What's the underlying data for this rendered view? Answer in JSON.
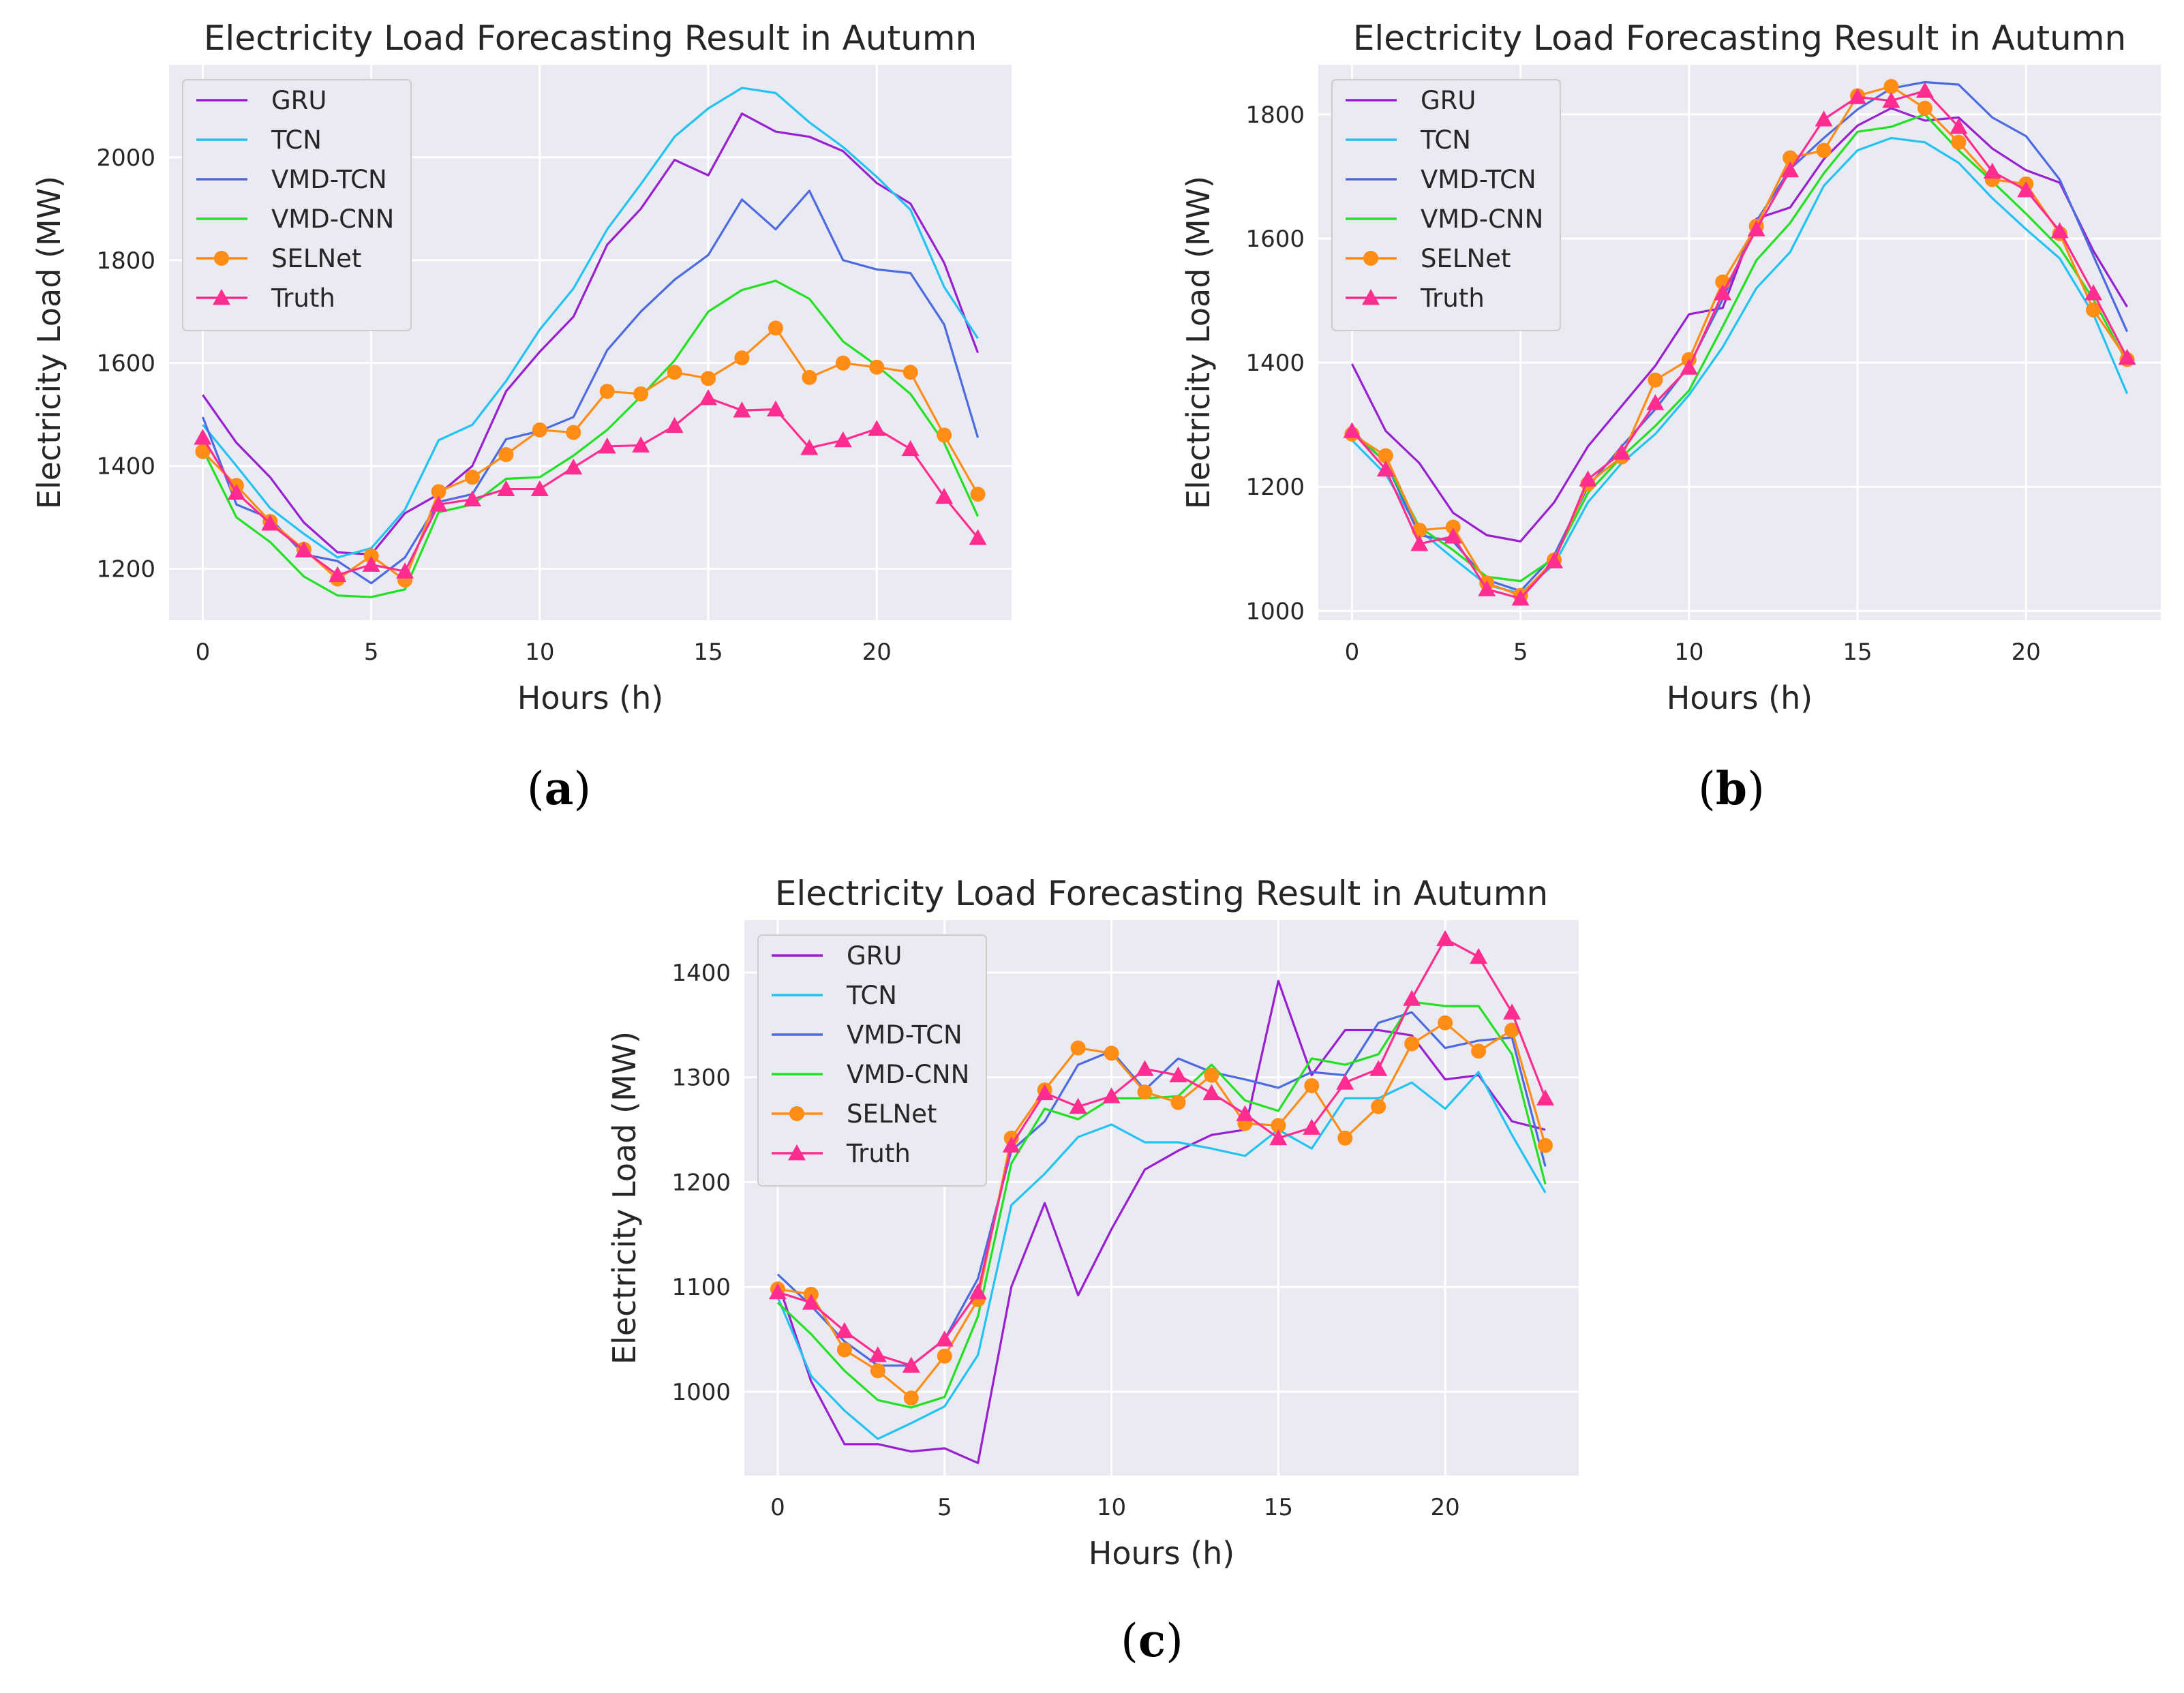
{
  "colors": {
    "plot_bg": "#eaeaf2",
    "grid": "#ffffff",
    "legend_bg": "#eaeaf2",
    "legend_border": "#cccccc",
    "GRU": "#9a1fd0",
    "TCN": "#22c3f2",
    "VMD-TCN": "#4d6ae0",
    "VMD-CNN": "#22e022",
    "SELNet": "#ff8c14",
    "Truth": "#ff2d8f"
  },
  "chart_data": [
    {
      "type": "line",
      "panel_label": "a",
      "title": "Electricity Load Forecasting Result in Autumn",
      "xlabel": "Hours (h)",
      "ylabel": "Electricity Load (MW)",
      "xlim": [
        -1,
        24
      ],
      "ylim": [
        1100,
        2180
      ],
      "xticks": [
        0,
        5,
        10,
        15,
        20
      ],
      "yticks": [
        1200,
        1400,
        1600,
        1800,
        2000
      ],
      "legend": "top-left",
      "grid": true,
      "x": [
        0,
        1,
        2,
        3,
        4,
        5,
        6,
        7,
        8,
        9,
        10,
        11,
        12,
        13,
        14,
        15,
        16,
        17,
        18,
        19,
        20,
        21,
        22,
        23
      ],
      "series": [
        {
          "name": "GRU",
          "marker": "none",
          "values": [
            1538,
            1445,
            1378,
            1290,
            1232,
            1228,
            1308,
            1345,
            1400,
            1545,
            1622,
            1690,
            1830,
            1900,
            1995,
            1965,
            2085,
            2050,
            2040,
            2012,
            1950,
            1910,
            1795,
            1620
          ]
        },
        {
          "name": "TCN",
          "marker": "none",
          "values": [
            1480,
            1400,
            1318,
            1268,
            1222,
            1240,
            1315,
            1450,
            1480,
            1565,
            1665,
            1745,
            1860,
            1948,
            2040,
            2095,
            2135,
            2125,
            2068,
            2020,
            1962,
            1898,
            1748,
            1648
          ]
        },
        {
          "name": "VMD-TCN",
          "marker": "none",
          "values": [
            1495,
            1325,
            1298,
            1228,
            1215,
            1172,
            1222,
            1330,
            1345,
            1452,
            1468,
            1495,
            1625,
            1700,
            1762,
            1810,
            1918,
            1860,
            1935,
            1800,
            1782,
            1775,
            1675,
            1455
          ]
        },
        {
          "name": "VMD-CNN",
          "marker": "none",
          "values": [
            1432,
            1300,
            1252,
            1185,
            1148,
            1145,
            1160,
            1310,
            1325,
            1375,
            1378,
            1420,
            1470,
            1535,
            1605,
            1700,
            1742,
            1760,
            1725,
            1642,
            1595,
            1540,
            1445,
            1302
          ]
        },
        {
          "name": "SELNet",
          "marker": "circle",
          "values": [
            1428,
            1362,
            1292,
            1238,
            1180,
            1225,
            1178,
            1350,
            1378,
            1422,
            1470,
            1465,
            1545,
            1540,
            1582,
            1570,
            1610,
            1668,
            1572,
            1600,
            1592,
            1582,
            1460,
            1345
          ]
        },
        {
          "name": "Truth",
          "marker": "triangle",
          "values": [
            1455,
            1348,
            1288,
            1236,
            1188,
            1208,
            1195,
            1325,
            1335,
            1355,
            1355,
            1397,
            1438,
            1440,
            1478,
            1532,
            1508,
            1510,
            1435,
            1450,
            1472,
            1433,
            1340,
            1260
          ]
        }
      ]
    },
    {
      "type": "line",
      "panel_label": "b",
      "title": "Electricity Load Forecasting Result in Autumn",
      "xlabel": "Hours (h)",
      "ylabel": "Electricity Load (MW)",
      "xlim": [
        -1,
        24
      ],
      "ylim": [
        985,
        1880
      ],
      "xticks": [
        0,
        5,
        10,
        15,
        20
      ],
      "yticks": [
        1000,
        1200,
        1400,
        1600,
        1800
      ],
      "legend": "top-left",
      "grid": true,
      "x": [
        0,
        1,
        2,
        3,
        4,
        5,
        6,
        7,
        8,
        9,
        10,
        11,
        12,
        13,
        14,
        15,
        16,
        17,
        18,
        19,
        20,
        21,
        22,
        23
      ],
      "series": [
        {
          "name": "GRU",
          "marker": "none",
          "values": [
            1398,
            1290,
            1238,
            1158,
            1122,
            1112,
            1175,
            1265,
            1330,
            1395,
            1478,
            1488,
            1632,
            1650,
            1728,
            1782,
            1810,
            1790,
            1795,
            1745,
            1710,
            1690,
            1580,
            1490
          ]
        },
        {
          "name": "TCN",
          "marker": "none",
          "values": [
            1275,
            1220,
            1130,
            1085,
            1042,
            1028,
            1075,
            1175,
            1238,
            1285,
            1348,
            1425,
            1520,
            1578,
            1685,
            1742,
            1762,
            1755,
            1722,
            1665,
            1615,
            1568,
            1478,
            1350
          ]
        },
        {
          "name": "VMD-TCN",
          "marker": "none",
          "values": [
            1288,
            1240,
            1122,
            1112,
            1050,
            1032,
            1090,
            1200,
            1265,
            1325,
            1395,
            1502,
            1628,
            1712,
            1762,
            1808,
            1842,
            1852,
            1848,
            1795,
            1765,
            1695,
            1572,
            1450
          ]
        },
        {
          "name": "VMD-CNN",
          "marker": "none",
          "values": [
            1290,
            1240,
            1135,
            1098,
            1055,
            1048,
            1085,
            1190,
            1248,
            1298,
            1355,
            1458,
            1565,
            1625,
            1705,
            1772,
            1780,
            1800,
            1742,
            1692,
            1640,
            1585,
            1502,
            1400
          ]
        },
        {
          "name": "SELNet",
          "marker": "circle",
          "values": [
            1285,
            1250,
            1130,
            1135,
            1045,
            1025,
            1082,
            1205,
            1248,
            1372,
            1405,
            1530,
            1620,
            1730,
            1742,
            1830,
            1845,
            1810,
            1755,
            1695,
            1688,
            1608,
            1485,
            1405
          ]
        },
        {
          "name": "Truth",
          "marker": "triangle",
          "values": [
            1290,
            1228,
            1108,
            1120,
            1035,
            1020,
            1080,
            1212,
            1255,
            1335,
            1392,
            1512,
            1615,
            1710,
            1792,
            1828,
            1822,
            1838,
            1780,
            1708,
            1678,
            1612,
            1512,
            1408
          ]
        }
      ]
    },
    {
      "type": "line",
      "panel_label": "c",
      "title": "Electricity Load Forecasting Result in Autumn",
      "xlabel": "Hours (h)",
      "ylabel": "Electricity Load (MW)",
      "xlim": [
        -1,
        24
      ],
      "ylim": [
        920,
        1450
      ],
      "xticks": [
        0,
        5,
        10,
        15,
        20
      ],
      "yticks": [
        1000,
        1100,
        1200,
        1300,
        1400
      ],
      "legend": "top-left",
      "grid": true,
      "x": [
        0,
        1,
        2,
        3,
        4,
        5,
        6,
        7,
        8,
        9,
        10,
        11,
        12,
        13,
        14,
        15,
        16,
        17,
        18,
        19,
        20,
        21,
        22,
        23
      ],
      "series": [
        {
          "name": "GRU",
          "marker": "none",
          "values": [
            1105,
            1010,
            950,
            950,
            943,
            946,
            932,
            1100,
            1180,
            1092,
            1155,
            1212,
            1230,
            1245,
            1250,
            1392,
            1302,
            1345,
            1345,
            1340,
            1298,
            1302,
            1258,
            1250
          ]
        },
        {
          "name": "TCN",
          "marker": "none",
          "values": [
            1090,
            1015,
            982,
            955,
            970,
            986,
            1035,
            1178,
            1208,
            1243,
            1255,
            1238,
            1238,
            1232,
            1225,
            1250,
            1232,
            1280,
            1280,
            1295,
            1270,
            1305,
            1245,
            1190
          ]
        },
        {
          "name": "VMD-TCN",
          "marker": "none",
          "values": [
            1112,
            1082,
            1048,
            1025,
            1025,
            1050,
            1108,
            1230,
            1258,
            1312,
            1325,
            1288,
            1318,
            1305,
            1298,
            1290,
            1305,
            1302,
            1352,
            1362,
            1328,
            1335,
            1338,
            1215
          ]
        },
        {
          "name": "VMD-CNN",
          "marker": "none",
          "values": [
            1085,
            1055,
            1020,
            992,
            985,
            995,
            1072,
            1218,
            1270,
            1260,
            1280,
            1280,
            1282,
            1312,
            1278,
            1268,
            1318,
            1312,
            1322,
            1372,
            1368,
            1368,
            1322,
            1198
          ]
        },
        {
          "name": "SELNet",
          "marker": "circle",
          "values": [
            1098,
            1093,
            1040,
            1020,
            994,
            1034,
            1088,
            1242,
            1288,
            1328,
            1323,
            1286,
            1276,
            1302,
            1256,
            1254,
            1292,
            1242,
            1272,
            1332,
            1352,
            1325,
            1345,
            1235
          ]
        },
        {
          "name": "Truth",
          "marker": "triangle",
          "values": [
            1095,
            1085,
            1058,
            1035,
            1025,
            1050,
            1095,
            1235,
            1285,
            1272,
            1282,
            1308,
            1302,
            1285,
            1265,
            1242,
            1252,
            1295,
            1308,
            1375,
            1432,
            1415,
            1362,
            1280
          ]
        }
      ]
    }
  ]
}
